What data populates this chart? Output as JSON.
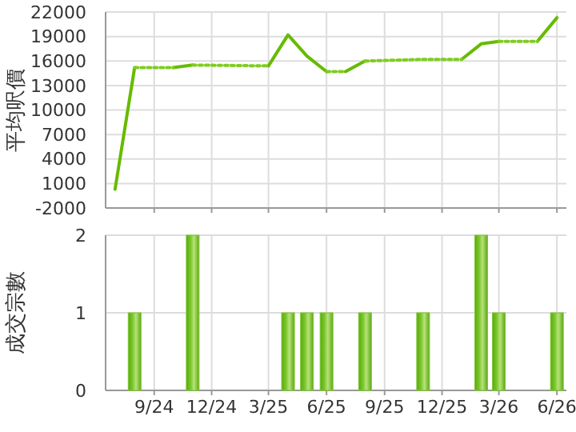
{
  "chart_data": [
    {
      "type": "line",
      "ylabel": "平均呎價",
      "xlim": [
        "2024-06-16",
        "2026-06-16"
      ],
      "ylim": [
        -2000,
        22000
      ],
      "yticks": [
        -2000,
        1000,
        4000,
        7000,
        10000,
        13000,
        16000,
        19000,
        22000
      ],
      "xticks": [
        {
          "value": "2024-09",
          "label": null
        },
        {
          "value": "2024-12",
          "label": null
        },
        {
          "value": "2025-03",
          "label": null
        },
        {
          "value": "2025-06",
          "label": null
        },
        {
          "value": "2025-09",
          "label": null
        },
        {
          "value": "2025-12",
          "label": null
        },
        {
          "value": "2026-03",
          "label": null
        },
        {
          "value": "2026-06",
          "label": null
        }
      ],
      "grid": true,
      "tick_labels": "y",
      "series": [
        {
          "color": "#66bb00",
          "line_style": "solid",
          "x": [
            "2024-07",
            "2024-08",
            "2024-09",
            "2024-10",
            "2024-11",
            "2024-12",
            "2025-03",
            "2025-04",
            "2025-05",
            "2025-06",
            "2025-06-15",
            "2025-07",
            "2025-08",
            "2025-09",
            "2026-01",
            "2026-02",
            "2026-03",
            "2026-04",
            "2026-05",
            "2026-06"
          ],
          "values": [
            300,
            15200,
            null,
            15200,
            15500,
            null,
            15400,
            19200,
            16600,
            14700,
            null,
            14700,
            16000,
            null,
            16200,
            18100,
            18400,
            null,
            18400,
            21300
          ]
        },
        {
          "color": "#80cc22",
          "line_style": "dotted",
          "x": [
            "2024-08",
            "2024-10"
          ],
          "values": [
            15200,
            15200
          ]
        },
        {
          "color": "#80cc22",
          "line_style": "dotted",
          "x": [
            "2024-11",
            "2025-03"
          ],
          "values": [
            15500,
            15400
          ]
        },
        {
          "color": "#80cc22",
          "line_style": "dotted",
          "x": [
            "2025-06",
            "2025-07"
          ],
          "values": [
            14700,
            14700
          ]
        },
        {
          "color": "#80cc22",
          "line_style": "dotted",
          "x": [
            "2025-08",
            "2025-11",
            "2026-01"
          ],
          "values": [
            16000,
            16200,
            16200
          ]
        },
        {
          "color": "#80cc22",
          "line_style": "dotted",
          "x": [
            "2026-03",
            "2026-05"
          ],
          "values": [
            18400,
            18400
          ]
        }
      ]
    },
    {
      "type": "bar",
      "ylabel": "成交宗數",
      "xlim": [
        "2024-06-16",
        "2026-06-16"
      ],
      "ylim": [
        0,
        2
      ],
      "yticks": [
        0,
        1,
        2
      ],
      "xticks": [
        {
          "value": "2024-09",
          "label": "9/24"
        },
        {
          "value": "2024-12",
          "label": "12/24"
        },
        {
          "value": "2025-03",
          "label": "3/25"
        },
        {
          "value": "2025-06",
          "label": "6/25"
        },
        {
          "value": "2025-09",
          "label": "9/25"
        },
        {
          "value": "2025-12",
          "label": "12/25"
        },
        {
          "value": "2026-03",
          "label": "3/26"
        },
        {
          "value": "2026-06",
          "label": "6/26"
        }
      ],
      "grid": true,
      "x": [
        "2024-08",
        "2024-11",
        "2025-04",
        "2025-05",
        "2025-06",
        "2025-08",
        "2025-11",
        "2026-02",
        "2026-03",
        "2026-06"
      ],
      "values": [
        1,
        2,
        1,
        1,
        1,
        1,
        1,
        2,
        1,
        1
      ],
      "color": "#7cc82c"
    }
  ]
}
